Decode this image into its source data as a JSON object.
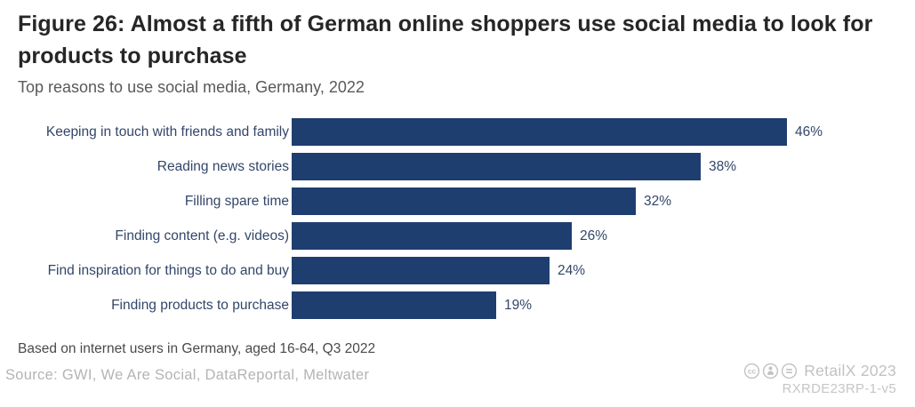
{
  "header": {
    "title": "Figure 26: Almost a fifth of German online shoppers use social media to look for products to purchase",
    "subtitle": "Top reasons to use social media, Germany, 2022"
  },
  "chart_data": {
    "type": "bar",
    "orientation": "horizontal",
    "title": "Top reasons to use social media, Germany, 2022",
    "categories": [
      "Keeping in touch with friends and family",
      "Reading news stories",
      "Filling spare time",
      "Finding content (e.g. videos)",
      "Find inspiration for things to do and buy",
      "Finding products to purchase"
    ],
    "values": [
      46,
      38,
      32,
      26,
      24,
      19
    ],
    "value_suffix": "%",
    "xlabel": "",
    "ylabel": "",
    "xlim": [
      0,
      50
    ],
    "grid": false,
    "legend": false,
    "data_labels": "outside-end",
    "bar_color": "#1f3e70"
  },
  "footer": {
    "note": "Based on internet users in Germany, aged 16-64, Q3 2022",
    "source": "Source: GWI, We Are Social, DataReportal, Meltwater",
    "branding": "RetailX 2023",
    "reference": "RXRDE23RP-1-v5",
    "license_icons": [
      "cc-icon",
      "attribution-icon",
      "no-derivatives-icon"
    ]
  },
  "colors": {
    "bar": "#1f3e70",
    "category_text": "#334669",
    "title_text": "#262626",
    "subtitle_text": "#58595b",
    "note_text": "#4a4a4a",
    "source_text": "#b4b4b4",
    "branding_text": "#c2c2c2"
  }
}
